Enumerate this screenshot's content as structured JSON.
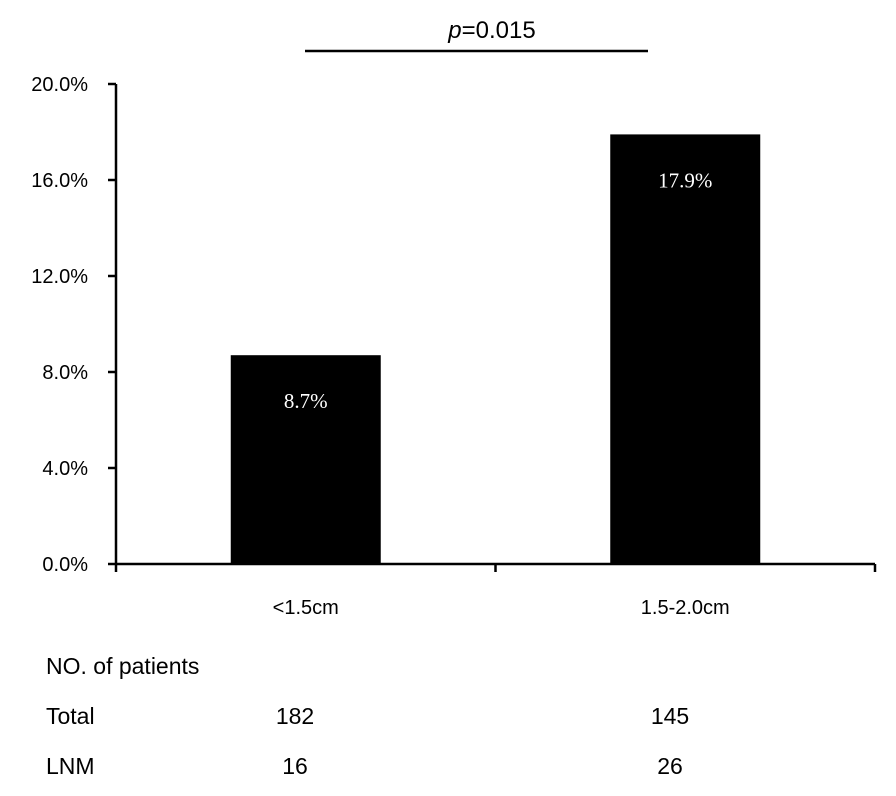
{
  "chart_data": {
    "type": "bar",
    "categories": [
      "<1.5cm",
      "1.5-2.0cm"
    ],
    "values": [
      8.7,
      17.9
    ],
    "value_labels": [
      "8.7%",
      "17.9%"
    ],
    "ylim": [
      0,
      20
    ],
    "yticks": [
      "0.0%",
      "4.0%",
      "8.0%",
      "12.0%",
      "16.0%",
      "20.0%"
    ],
    "ytick_values": [
      0,
      4,
      8,
      12,
      16,
      20
    ],
    "bar_color": "#000000",
    "label_color": "#ffffff",
    "grid": false,
    "significance": {
      "prefix": "p",
      "value": "=0.015"
    }
  },
  "patients_table": {
    "heading": "NO. of patients",
    "rows": [
      {
        "label": "Total",
        "values": [
          "182",
          "145"
        ]
      },
      {
        "label": "LNM",
        "values": [
          "16",
          "26"
        ]
      }
    ]
  }
}
